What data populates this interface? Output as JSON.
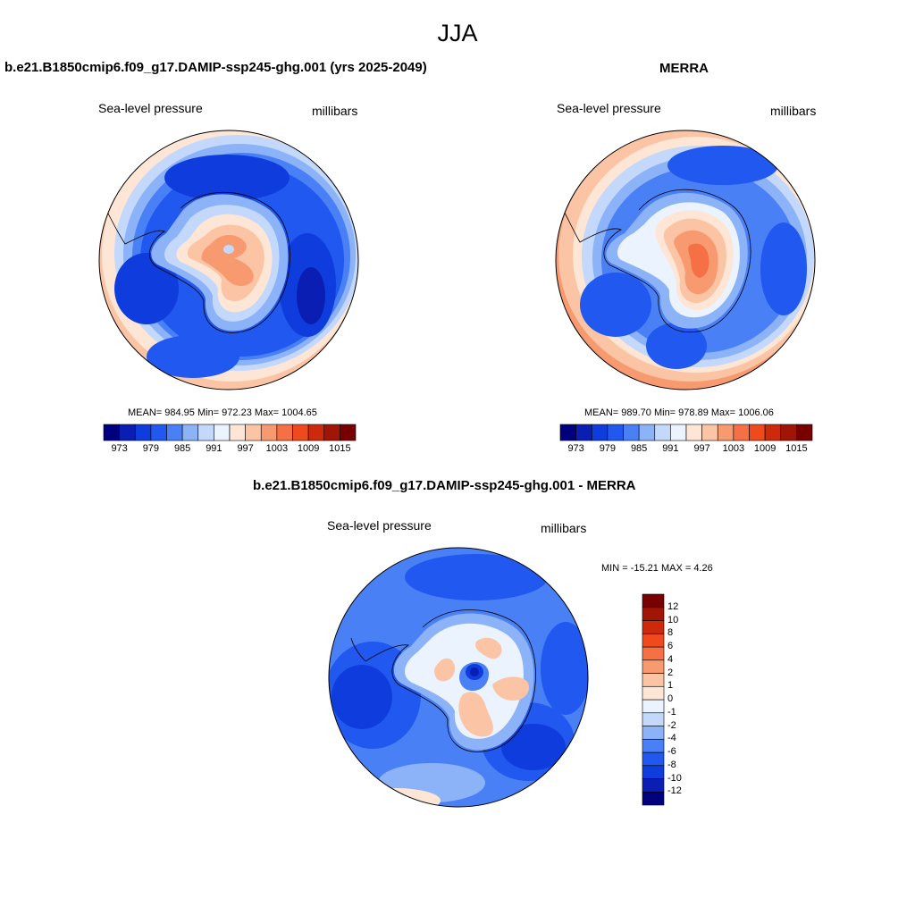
{
  "page": {
    "title": "JJA"
  },
  "panels": {
    "model": {
      "title": "b.e21.B1850cmip6.f09_g17.DAMIP-ssp245-ghg.001 (yrs 2025-2049)",
      "field": "Sea-level pressure",
      "units": "millibars",
      "stats": {
        "mean": "984.95",
        "min": "972.23",
        "max": "1004.65"
      },
      "stats_text": "MEAN= 984.95   Min= 972.23   Max= 1004.65"
    },
    "obs": {
      "title": "MERRA",
      "field": "Sea-level pressure",
      "units": "millibars",
      "stats": {
        "mean": "989.70",
        "min": "978.89",
        "max": "1006.06"
      },
      "stats_text": "MEAN= 989.70   Min= 978.89   Max= 1006.06"
    },
    "diff": {
      "title": "b.e21.B1850cmip6.f09_g17.DAMIP-ssp245-ghg.001 - MERRA",
      "field": "Sea-level pressure",
      "units": "millibars",
      "stats": {
        "min": "-15.21",
        "max": "4.26"
      },
      "stats_text": "MIN = -15.21 MAX =   4.26"
    }
  },
  "colorbars": {
    "absolute": {
      "orientation": "horizontal",
      "colors": [
        "#00007f",
        "#0a1eb4",
        "#0f3cdc",
        "#2058f0",
        "#4a80f5",
        "#8cb2f8",
        "#c3d8fb",
        "#ebf3fe",
        "#fde6d6",
        "#fbc4a4",
        "#f89a70",
        "#f57045",
        "#ee4a1e",
        "#cc2a0a",
        "#a01505",
        "#780000"
      ],
      "tick_labels": [
        "973",
        "979",
        "985",
        "991",
        "997",
        "1003",
        "1009",
        "1015"
      ]
    },
    "difference": {
      "orientation": "vertical",
      "colors": [
        "#00007f",
        "#0a1eb4",
        "#0f3cdc",
        "#2058f0",
        "#4a80f5",
        "#8cb2f8",
        "#c3d8fb",
        "#ebf3fe",
        "#fde6d6",
        "#fbc4a4",
        "#f89a70",
        "#f57045",
        "#ee4a1e",
        "#cc2a0a",
        "#a01505",
        "#780000"
      ],
      "tick_labels": [
        "-12",
        "-10",
        "-8",
        "-6",
        "-4",
        "-2",
        "-1",
        "0",
        "1",
        "2",
        "4",
        "6",
        "8",
        "10",
        "12"
      ]
    }
  },
  "map_colors": {
    "ocean_deep": "#0f3cdc",
    "ocean_mid": "#2058f0",
    "ocean_light": "#4a80f5",
    "pale_blue": "#8cb2f8",
    "very_pale_blue": "#c3d8fb",
    "near_zero": "#ebf3fe",
    "pale_orange": "#fbc4a4",
    "orange": "#f89a70",
    "deep_orange": "#f57045",
    "navy": "#0a1eb4"
  }
}
